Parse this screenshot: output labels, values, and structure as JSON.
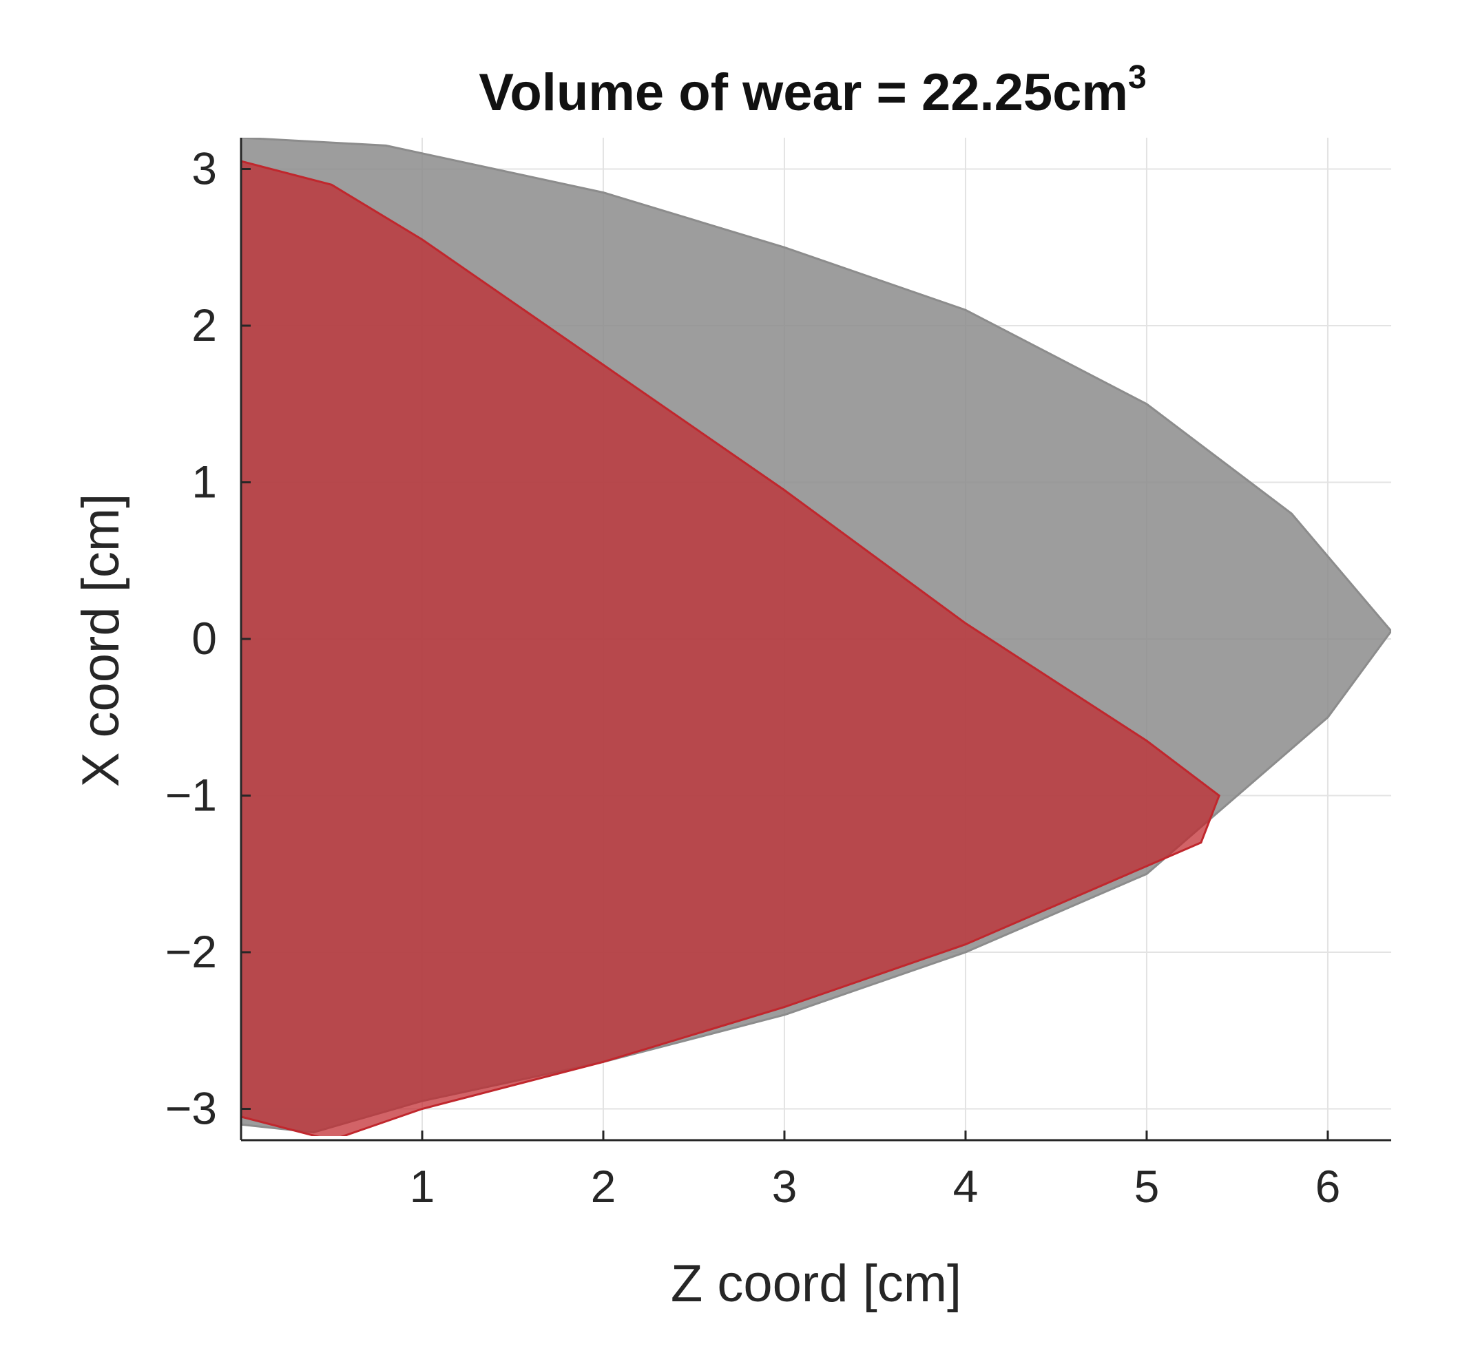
{
  "chart_data": {
    "type": "area",
    "title_main": "Volume of wear = 22.25cm",
    "title_superscript": "3",
    "xlabel": "Z coord [cm]",
    "ylabel": "X coord [cm]",
    "xlim": [
      0,
      6.35
    ],
    "ylim": [
      -3.2,
      3.2
    ],
    "xticks": [
      1,
      2,
      3,
      4,
      5,
      6
    ],
    "yticks": [
      -3,
      -2,
      -1,
      0,
      1,
      2,
      3
    ],
    "grid": true,
    "series": [
      {
        "color": "#8c8c8c",
        "outline": [
          [
            0,
            3.2
          ],
          [
            0.8,
            3.15
          ],
          [
            2.0,
            2.85
          ],
          [
            3.0,
            2.5
          ],
          [
            4.0,
            2.1
          ],
          [
            5.0,
            1.5
          ],
          [
            5.8,
            0.8
          ],
          [
            6.35,
            0.05
          ],
          [
            6.0,
            -0.5
          ],
          [
            5.4,
            -1.1
          ],
          [
            5.0,
            -1.5
          ],
          [
            4.0,
            -2.0
          ],
          [
            3.0,
            -2.4
          ],
          [
            2.0,
            -2.7
          ],
          [
            1.0,
            -2.95
          ],
          [
            0.4,
            -3.15
          ],
          [
            0,
            -3.1
          ]
        ]
      },
      {
        "color": "#c0272d",
        "outline": [
          [
            0,
            3.05
          ],
          [
            0.5,
            2.9
          ],
          [
            1.0,
            2.55
          ],
          [
            2.0,
            1.75
          ],
          [
            3.0,
            0.95
          ],
          [
            4.0,
            0.1
          ],
          [
            5.0,
            -0.65
          ],
          [
            5.4,
            -1.0
          ],
          [
            5.3,
            -1.3
          ],
          [
            4.0,
            -1.95
          ],
          [
            3.0,
            -2.35
          ],
          [
            2.0,
            -2.7
          ],
          [
            1.0,
            -3.0
          ],
          [
            0.5,
            -3.2
          ],
          [
            0,
            -3.05
          ]
        ]
      }
    ]
  }
}
